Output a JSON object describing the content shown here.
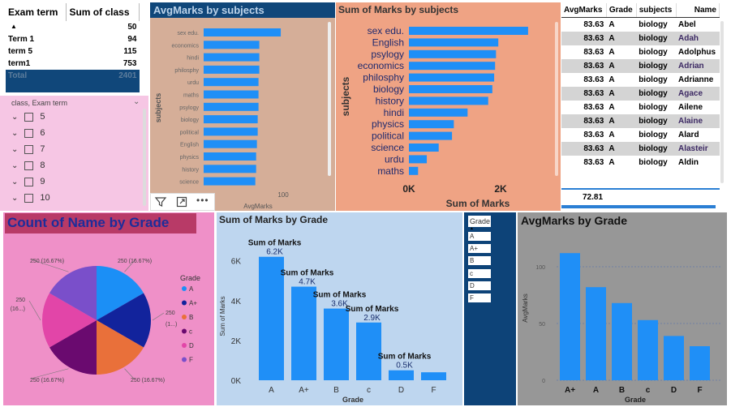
{
  "term_table": {
    "headers": [
      "Exam term",
      "Sum of class"
    ],
    "rows": [
      {
        "term": "",
        "value": "50"
      },
      {
        "term": "Term 1",
        "value": "94"
      },
      {
        "term": "term 5",
        "value": "115"
      },
      {
        "term": "term1",
        "value": "753"
      }
    ],
    "total_label": "Total",
    "total_value": "2401"
  },
  "slicer": {
    "title": "class, Exam term",
    "items": [
      "5",
      "6",
      "7",
      "8",
      "9",
      "10"
    ]
  },
  "avg_subjects": {
    "title": "AvgMarks by subjects",
    "chart_data": {
      "type": "bar",
      "orientation": "horizontal",
      "title": "AvgMarks by subjects",
      "ylabel": "subjects",
      "xlabel": "AvgMarks",
      "categories": [
        "sex edu.",
        "economics",
        "hindi",
        "philosphy",
        "urdu",
        "maths",
        "psylogy",
        "biology",
        "political",
        "English",
        "physics",
        "history",
        "science"
      ],
      "values": [
        97,
        70,
        70,
        70,
        69,
        69,
        69,
        68,
        68,
        67,
        66,
        66,
        65
      ],
      "xticks": [
        "100"
      ],
      "xlim": [
        0,
        115
      ],
      "color": "#1f8ff7"
    }
  },
  "sum_subjects": {
    "title": "Sum of Marks by subjects",
    "chart_data": {
      "type": "bar",
      "orientation": "horizontal",
      "title": "Sum of Marks by subjects",
      "ylabel": "subjects",
      "xlabel": "Sum of Marks",
      "categories": [
        "sex edu.",
        "English",
        "psylogy",
        "economics",
        "philosphy",
        "biology",
        "history",
        "hindi",
        "physics",
        "political",
        "science",
        "urdu",
        "maths"
      ],
      "values": [
        2600,
        1950,
        1900,
        1880,
        1860,
        1820,
        1730,
        1280,
        980,
        940,
        650,
        390,
        200
      ],
      "xticks": [
        "0K",
        "2K"
      ],
      "xlim": [
        0,
        2800
      ],
      "color": "#1f8ff7"
    }
  },
  "detail_table": {
    "headers": [
      "AvgMarks",
      "Grade",
      "subjects",
      "Name"
    ],
    "rows": [
      [
        "83.63",
        "A",
        "biology",
        "Abel"
      ],
      [
        "83.63",
        "A",
        "biology",
        "Adah"
      ],
      [
        "83.63",
        "A",
        "biology",
        "Adolphus"
      ],
      [
        "83.63",
        "A",
        "biology",
        "Adrian"
      ],
      [
        "83.63",
        "A",
        "biology",
        "Adrianne"
      ],
      [
        "83.63",
        "A",
        "biology",
        "Agace"
      ],
      [
        "83.63",
        "A",
        "biology",
        "Ailene"
      ],
      [
        "83.63",
        "A",
        "biology",
        "Alaine"
      ],
      [
        "83.63",
        "A",
        "biology",
        "Alard"
      ],
      [
        "83.63",
        "A",
        "biology",
        "Alasteir"
      ],
      [
        "83.63",
        "A",
        "biology",
        "Aldin"
      ]
    ],
    "total": "72.81"
  },
  "count_grade": {
    "title": "Count of Name by Grade",
    "chart_data": {
      "type": "pie",
      "title": "Count of Name by Grade",
      "legend_title": "Grade",
      "legend_position": "right",
      "categories": [
        "A",
        "A+",
        "B",
        "c",
        "D",
        "F"
      ],
      "values": [
        250,
        250,
        250,
        250,
        250,
        250
      ],
      "labels": [
        "250 (16.67%)",
        "250 (1...)",
        "250 (16.67%)",
        "250 (16.67%)",
        "250 (16...)",
        "250 (16.67%)"
      ],
      "colors": [
        "#1b8ff6",
        "#12239c",
        "#e9703a",
        "#6a0a6f",
        "#e245a8",
        "#7a4fca"
      ]
    }
  },
  "sum_grade": {
    "title": "Sum of Marks by Grade",
    "chart_data": {
      "type": "bar",
      "title": "Sum of Marks by Grade",
      "xlabel": "Grade",
      "ylabel": "Sum of Marks",
      "categories": [
        "A",
        "A+",
        "B",
        "c",
        "D",
        "F"
      ],
      "values": [
        6200,
        4700,
        3600,
        2900,
        500,
        400
      ],
      "data_labels": [
        "6.2K",
        "4.7K",
        "3.6K",
        "2.9K",
        "0.5K",
        ""
      ],
      "data_label_title": "Sum of Marks",
      "yticks": [
        0,
        2000,
        4000,
        6000
      ],
      "ytick_labels": [
        "0K",
        "2K",
        "4K",
        "6K"
      ],
      "ylim": [
        0,
        6800
      ],
      "color": "#1f8ff7"
    }
  },
  "grade_slicer": {
    "title": "Grade",
    "items": [
      "A",
      "A+",
      "B",
      "c",
      "D",
      "F"
    ]
  },
  "avg_grade": {
    "title": "AvgMarks by Grade",
    "chart_data": {
      "type": "bar",
      "title": "AvgMarks by Grade",
      "xlabel": "Grade",
      "ylabel": "AvgMarks",
      "categories": [
        "A+",
        "A",
        "B",
        "c",
        "D",
        "F"
      ],
      "values": [
        112,
        82,
        68,
        53,
        39,
        30
      ],
      "yticks": [
        0,
        50,
        100
      ],
      "ylim": [
        0,
        125
      ],
      "color": "#1f8ff7"
    }
  }
}
